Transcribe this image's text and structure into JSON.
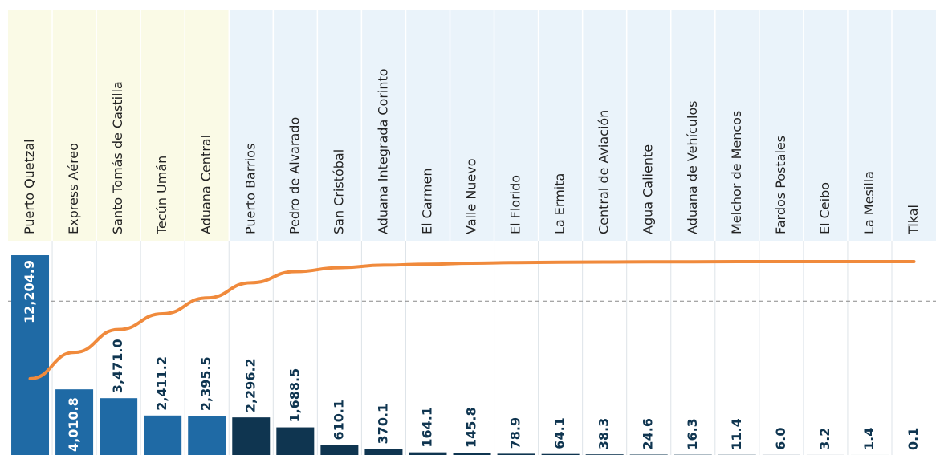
{
  "chart_data": {
    "type": "pareto",
    "categories": [
      "Puerto Quetzal",
      "Express Aéreo",
      "Santo Tomás de Castilla",
      "Tecún Umán",
      "Aduana Central",
      "Puerto Barrios",
      "Pedro de Alvarado",
      "San Cristóbal",
      "Aduana Integrada Corinto",
      "El Carmen",
      "Valle Nuevo",
      "El Florido",
      "La Ermita",
      "Central de Aviación",
      "Agua Caliente",
      "Aduana de Vehículos",
      "Melchor de Mencos",
      "Fardos Postales",
      "El Ceibo",
      "La Mesilla",
      "Tikal"
    ],
    "series": [
      {
        "color": "#1f6aa5",
        "values": [
          12204.9,
          4010.8,
          3471.0,
          2411.2,
          2395.5,
          2296.2,
          1688.5,
          610.1,
          370.1,
          164.1,
          145.8,
          78.9,
          64.1,
          38.3,
          24.6,
          16.3,
          11.4,
          6.0,
          3.2,
          1.4,
          0.1
        ],
        "value_labels": [
          "12,204.9",
          "4,010.8",
          "3,471.0",
          "2,411.2",
          "2,395.5",
          "2,296.2",
          "1,688.5",
          "610.1",
          "370.1",
          "164.1",
          "145.8",
          "78.9",
          "64.1",
          "38.3",
          "24.6",
          "16.3",
          "11.4",
          "6.0",
          "3.2",
          "1.4",
          "0.1"
        ],
        "colors": [
          "#1f6aa5",
          "#1f6aa5",
          "#1f6aa5",
          "#1f6aa5",
          "#1f6aa5",
          "#0f3550",
          "#0f3550",
          "#0f3550",
          "#0f3550",
          "#0f3550",
          "#0f3550",
          "#0f3550",
          "#0f3550",
          "#0f3550",
          "#0f3550",
          "#0f3550",
          "#0f3550",
          "#0f3550",
          "#0f3550",
          "#0f3550",
          "#0f3550"
        ]
      },
      {
        "color": "#f08a3c",
        "axis": "y2",
        "values": [
          40.7,
          54.0,
          65.6,
          73.6,
          81.6,
          89.3,
          94.9,
          96.9,
          98.2,
          98.7,
          99.2,
          99.5,
          99.7,
          99.8,
          99.9,
          99.9,
          100.0,
          100.0,
          100.0,
          100.0,
          100.0
        ]
      }
    ],
    "y2lim": [
      0,
      100
    ],
    "reference_line": 80,
    "groups": [
      {
        "color": "#fafae6",
        "count": 5
      },
      {
        "color": "#eaf3fa",
        "count": 16
      }
    ]
  }
}
